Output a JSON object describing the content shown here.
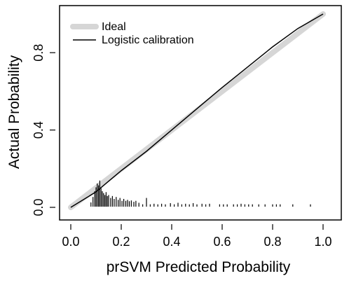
{
  "chart_data": {
    "type": "line",
    "xlabel": "prSVM Predicted Probability",
    "ylabel": "Actual Probability",
    "xlim": [
      0,
      1
    ],
    "ylim": [
      0,
      1
    ],
    "x_ticks": [
      "0.0",
      "0.2",
      "0.4",
      "0.6",
      "0.8",
      "1.0"
    ],
    "x_tick_values": [
      0,
      0.2,
      0.4,
      0.6,
      0.8,
      1.0
    ],
    "y_ticks": [
      "0.0",
      "0.4",
      "0.8"
    ],
    "y_tick_values": [
      0,
      0.4,
      0.8
    ],
    "legend_placement": "top-left",
    "legend": [
      {
        "label": "Ideal",
        "color": "#d6d6d6",
        "style": "thick"
      },
      {
        "label": "Logistic calibration",
        "color": "#000000",
        "style": "thin"
      }
    ],
    "series": [
      {
        "name": "Ideal",
        "color": "#d6d6d6",
        "x": [
          0,
          1
        ],
        "y": [
          0,
          1
        ]
      },
      {
        "name": "Logistic calibration",
        "color": "#000000",
        "x": [
          0.0,
          0.05,
          0.1,
          0.15,
          0.2,
          0.3,
          0.4,
          0.5,
          0.6,
          0.7,
          0.8,
          0.9,
          1.0
        ],
        "y": [
          0.0,
          0.04,
          0.08,
          0.135,
          0.19,
          0.29,
          0.4,
          0.51,
          0.62,
          0.725,
          0.83,
          0.925,
          1.0
        ]
      }
    ],
    "rug_color": "#000000",
    "rug": [
      {
        "x": 0.08,
        "h": 0.022
      },
      {
        "x": 0.088,
        "h": 0.05
      },
      {
        "x": 0.095,
        "h": 0.08
      },
      {
        "x": 0.1,
        "h": 0.1
      },
      {
        "x": 0.105,
        "h": 0.12
      },
      {
        "x": 0.11,
        "h": 0.11
      },
      {
        "x": 0.115,
        "h": 0.135
      },
      {
        "x": 0.12,
        "h": 0.095
      },
      {
        "x": 0.125,
        "h": 0.08
      },
      {
        "x": 0.13,
        "h": 0.07
      },
      {
        "x": 0.135,
        "h": 0.06
      },
      {
        "x": 0.14,
        "h": 0.075
      },
      {
        "x": 0.145,
        "h": 0.055
      },
      {
        "x": 0.15,
        "h": 0.06
      },
      {
        "x": 0.158,
        "h": 0.045
      },
      {
        "x": 0.165,
        "h": 0.055
      },
      {
        "x": 0.172,
        "h": 0.04
      },
      {
        "x": 0.18,
        "h": 0.05
      },
      {
        "x": 0.188,
        "h": 0.035
      },
      {
        "x": 0.195,
        "h": 0.045
      },
      {
        "x": 0.203,
        "h": 0.03
      },
      {
        "x": 0.21,
        "h": 0.04
      },
      {
        "x": 0.218,
        "h": 0.03
      },
      {
        "x": 0.225,
        "h": 0.035
      },
      {
        "x": 0.232,
        "h": 0.028
      },
      {
        "x": 0.24,
        "h": 0.032
      },
      {
        "x": 0.25,
        "h": 0.025
      },
      {
        "x": 0.258,
        "h": 0.03
      },
      {
        "x": 0.27,
        "h": 0.02
      },
      {
        "x": 0.285,
        "h": 0.012
      },
      {
        "x": 0.3,
        "h": 0.045
      },
      {
        "x": 0.315,
        "h": 0.012
      },
      {
        "x": 0.33,
        "h": 0.015
      },
      {
        "x": 0.345,
        "h": 0.012
      },
      {
        "x": 0.36,
        "h": 0.015
      },
      {
        "x": 0.375,
        "h": 0.012
      },
      {
        "x": 0.395,
        "h": 0.018
      },
      {
        "x": 0.41,
        "h": 0.012
      },
      {
        "x": 0.425,
        "h": 0.02
      },
      {
        "x": 0.44,
        "h": 0.012
      },
      {
        "x": 0.455,
        "h": 0.015
      },
      {
        "x": 0.47,
        "h": 0.012
      },
      {
        "x": 0.485,
        "h": 0.018
      },
      {
        "x": 0.5,
        "h": 0.012
      },
      {
        "x": 0.52,
        "h": 0.015
      },
      {
        "x": 0.535,
        "h": 0.012
      },
      {
        "x": 0.55,
        "h": 0.015
      },
      {
        "x": 0.59,
        "h": 0.012
      },
      {
        "x": 0.605,
        "h": 0.012
      },
      {
        "x": 0.62,
        "h": 0.012
      },
      {
        "x": 0.645,
        "h": 0.012
      },
      {
        "x": 0.66,
        "h": 0.012
      },
      {
        "x": 0.675,
        "h": 0.015
      },
      {
        "x": 0.69,
        "h": 0.012
      },
      {
        "x": 0.705,
        "h": 0.012
      },
      {
        "x": 0.72,
        "h": 0.012
      },
      {
        "x": 0.745,
        "h": 0.012
      },
      {
        "x": 0.77,
        "h": 0.012
      },
      {
        "x": 0.8,
        "h": 0.012
      },
      {
        "x": 0.815,
        "h": 0.012
      },
      {
        "x": 0.83,
        "h": 0.012
      },
      {
        "x": 0.88,
        "h": 0.012
      },
      {
        "x": 0.95,
        "h": 0.012
      }
    ]
  }
}
